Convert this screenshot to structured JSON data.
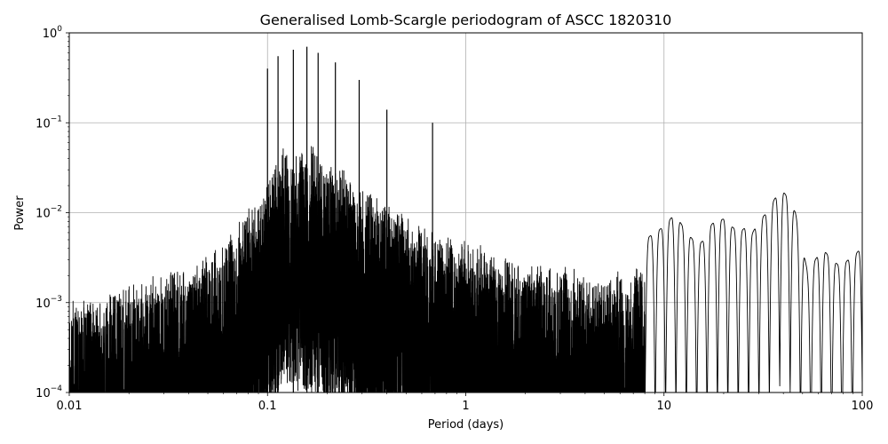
{
  "chart_data": {
    "type": "line",
    "title": "Generalised Lomb-Scargle periodogram of ASCC 1820310",
    "xlabel": "Period (days)",
    "ylabel": "Power",
    "xscale": "log",
    "yscale": "log",
    "xlim": [
      0.01,
      100
    ],
    "ylim": [
      0.0001,
      1
    ],
    "grid": true,
    "x_ticks": [
      {
        "value": 0.01,
        "label": "0.01"
      },
      {
        "value": 0.1,
        "label": "0.1"
      },
      {
        "value": 1,
        "label": "1"
      },
      {
        "value": 10,
        "label": "10"
      },
      {
        "value": 100,
        "label": "100"
      }
    ],
    "y_ticks": [
      {
        "value": 0.0001,
        "base": "10",
        "exp": "−4"
      },
      {
        "value": 0.001,
        "base": "10",
        "exp": "−3"
      },
      {
        "value": 0.01,
        "base": "10",
        "exp": "−2"
      },
      {
        "value": 0.1,
        "base": "10",
        "exp": "−1"
      },
      {
        "value": 1,
        "base": "10",
        "exp": "0"
      }
    ],
    "series": [
      {
        "color": "#000000",
        "x": [
          0.01,
          0.012,
          0.015,
          0.018,
          0.022,
          0.026,
          0.03,
          0.035,
          0.04,
          0.045,
          0.05,
          0.055,
          0.06,
          0.065,
          0.07,
          0.075,
          0.08,
          0.085,
          0.09,
          0.095,
          0.1,
          0.11,
          0.12,
          0.13,
          0.14,
          0.15,
          0.16,
          0.17,
          0.18,
          0.19,
          0.2,
          0.22,
          0.24,
          0.26,
          0.28,
          0.3,
          0.33,
          0.36,
          0.4,
          0.45,
          0.5,
          0.6,
          0.7,
          0.8,
          0.9,
          1.0,
          1.2,
          1.4,
          1.7,
          2.0,
          2.5,
          3.0,
          3.5,
          4.0,
          5.0,
          6.0,
          7.0,
          8.0,
          9.0,
          10.0,
          11.0,
          12.0,
          13.0,
          14.0,
          15.0,
          16.0,
          17.0,
          18.0,
          20.0,
          22.0,
          24.0,
          26.0,
          28.0,
          30.0,
          33.0,
          36.0,
          38.0,
          40.0,
          43.0,
          46.0,
          50.0,
          53.0,
          58.0,
          63.0,
          70.0,
          78.0,
          85.0,
          92.0,
          100.0
        ],
        "y": [
          0.0015,
          0.002,
          0.0018,
          0.0022,
          0.0025,
          0.003,
          0.0035,
          0.004,
          0.0045,
          0.005,
          0.006,
          0.007,
          0.008,
          0.009,
          0.012,
          0.015,
          0.018,
          0.02,
          0.022,
          0.025,
          0.04,
          0.06,
          0.08,
          0.09,
          0.1,
          0.08,
          0.07,
          0.09,
          0.08,
          0.06,
          0.05,
          0.06,
          0.05,
          0.04,
          0.035,
          0.03,
          0.028,
          0.025,
          0.02,
          0.018,
          0.015,
          0.012,
          0.01,
          0.009,
          0.008,
          0.0085,
          0.007,
          0.006,
          0.005,
          0.005,
          0.0045,
          0.004,
          0.004,
          0.003,
          0.003,
          0.0035,
          0.004,
          0.005,
          0.006,
          0.007,
          0.009,
          0.008,
          0.006,
          0.005,
          0.0045,
          0.005,
          0.007,
          0.008,
          0.0085,
          0.007,
          0.006,
          0.007,
          0.006,
          0.008,
          0.01,
          0.014,
          0.017,
          0.017,
          0.014,
          0.01,
          0.004,
          0.0022,
          0.003,
          0.004,
          0.003,
          0.0025,
          0.003,
          0.0034,
          0.0042
        ]
      }
    ],
    "peaks": [
      {
        "x": 0.1,
        "y": 0.4
      },
      {
        "x": 0.113,
        "y": 0.55
      },
      {
        "x": 0.135,
        "y": 0.65
      },
      {
        "x": 0.158,
        "y": 0.7
      },
      {
        "x": 0.18,
        "y": 0.6
      },
      {
        "x": 0.22,
        "y": 0.47
      },
      {
        "x": 0.29,
        "y": 0.3
      },
      {
        "x": 0.4,
        "y": 0.14
      },
      {
        "x": 0.68,
        "y": 0.1
      }
    ]
  }
}
